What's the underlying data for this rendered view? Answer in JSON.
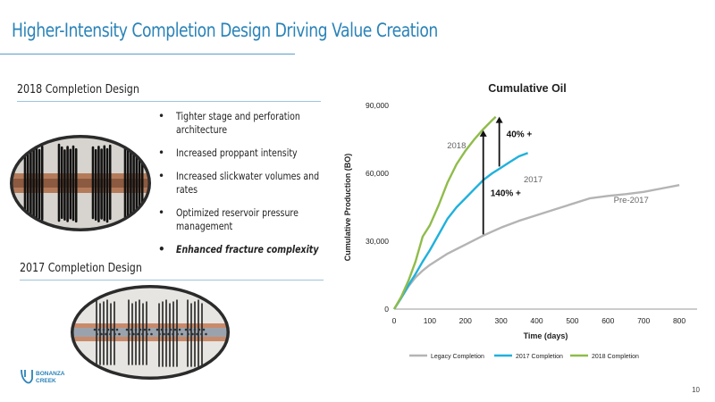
{
  "slide": {
    "title": "Higher-Intensity Completion Design Driving Value Creation",
    "page_number": "10"
  },
  "design_2018": {
    "heading": "2018 Completion Design",
    "bullets": [
      "Tighter stage and perforation architecture",
      "Increased proppant intensity",
      "Increased slickwater volumes and rates",
      "Optimized reservoir pressure management",
      "Enhanced fracture complexity"
    ]
  },
  "design_2017": {
    "heading": "2017 Completion Design"
  },
  "logo": {
    "line1": "BONANZA",
    "line2": "CREEK"
  },
  "colors": {
    "accent": "#2a83b8",
    "legacy": "#b4b4b4",
    "c2017": "#1fb1dc",
    "c2018": "#8fbc4a"
  },
  "chart_data": {
    "type": "line",
    "title": "Cumulative Oil",
    "xlabel": "Time (days)",
    "ylabel": "Cumulative Production (BO)",
    "xlim": [
      0,
      850
    ],
    "ylim": [
      0,
      90000
    ],
    "xticks": [
      "0",
      "100",
      "200",
      "300",
      "400",
      "500",
      "600",
      "700",
      "800"
    ],
    "yticks": [
      "0",
      "30,000",
      "60,000",
      "90,000"
    ],
    "legend": "bottom",
    "series": [
      {
        "name": "Legacy Completion",
        "label": "Pre-2017",
        "x": [
          0,
          20,
          40,
          60,
          80,
          100,
          150,
          200,
          250,
          300,
          350,
          400,
          450,
          500,
          550,
          600,
          650,
          700,
          750,
          800
        ],
        "y": [
          0,
          5000,
          10000,
          14000,
          17000,
          19500,
          24500,
          28500,
          32500,
          36000,
          39000,
          41500,
          44000,
          46500,
          49000,
          50000,
          50800,
          51800,
          53300,
          54800
        ]
      },
      {
        "name": "2017 Completion",
        "label": "2017",
        "x": [
          0,
          20,
          40,
          60,
          80,
          100,
          125,
          150,
          175,
          200,
          225,
          250,
          275,
          300,
          325,
          350,
          375
        ],
        "y": [
          0,
          5000,
          10500,
          15500,
          21000,
          26000,
          33000,
          40000,
          45000,
          49000,
          53000,
          57000,
          60000,
          62500,
          65000,
          67500,
          69000
        ]
      },
      {
        "name": "2018 Completion",
        "label": "2018",
        "x": [
          0,
          20,
          40,
          60,
          80,
          100,
          125,
          150,
          175,
          200,
          225,
          250,
          275,
          285
        ],
        "y": [
          0,
          5500,
          12500,
          21000,
          32000,
          37000,
          46000,
          56000,
          64000,
          70000,
          75000,
          79500,
          83500,
          85000
        ]
      }
    ],
    "annotations": [
      {
        "text": "140% +",
        "x": 250,
        "y_from": 33000,
        "y_to": 79000
      },
      {
        "text": "40% +",
        "x": 295,
        "y_from": 63000,
        "y_to": 85000
      }
    ]
  }
}
